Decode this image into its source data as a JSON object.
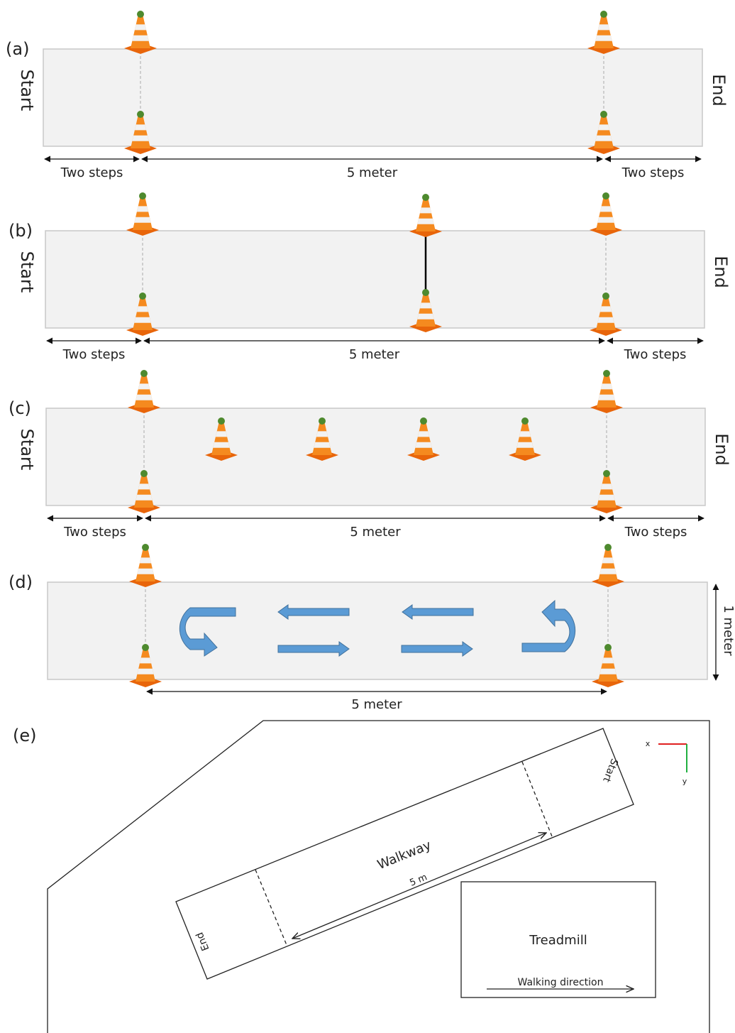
{
  "panels": [
    {
      "label": "(a)",
      "start": "Start",
      "end": "End",
      "left": "Two steps",
      "middle": "5 meter",
      "right": "Two steps"
    },
    {
      "label": "(b)",
      "start": "Start",
      "end": "End",
      "left": "Two steps",
      "middle": "5 meter",
      "right": "Two steps"
    },
    {
      "label": "(c)",
      "start": "Start",
      "end": "End",
      "left": "Two steps",
      "middle": "5 meter",
      "right": "Two steps"
    },
    {
      "label": "(d)",
      "middle": "5 meter",
      "side": "1 meter"
    }
  ],
  "floor_plan": {
    "label": "(e)",
    "walkway": "Walkway",
    "distance": "5 m",
    "start": "Start",
    "end": "End",
    "treadmill": "Treadmill",
    "direction": "Walking direction",
    "axis_x": "x",
    "axis_y": "y"
  }
}
